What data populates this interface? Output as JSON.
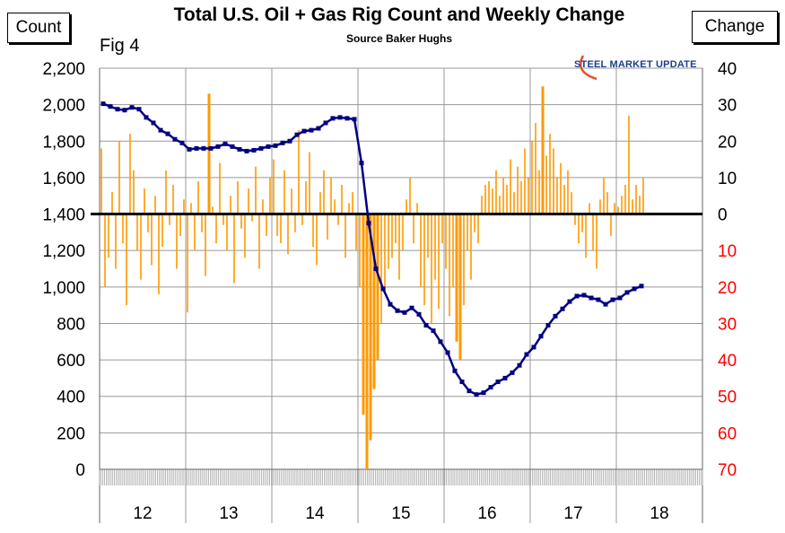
{
  "chart_data": {
    "type": "bar+line",
    "title": "Total U.S. Oil + Gas Rig Count and Weekly Change",
    "subtitle": "Source Baker Hughs",
    "figure_label": "Fig 4",
    "left_axis_label": "Count",
    "right_axis_label": "Change",
    "logo_text": "STEEL MARKET UPDATE",
    "x_tick_labels": [
      "12",
      "13",
      "14",
      "15",
      "16",
      "17",
      "18"
    ],
    "xlim": [
      2012,
      2019
    ],
    "left_ylim": [
      0,
      2200
    ],
    "left_ticks": [
      "0",
      "200",
      "400",
      "600",
      "800",
      "1,000",
      "1,200",
      "1,400",
      "1,600",
      "1,800",
      "2,000",
      "2,200"
    ],
    "right_ylim": [
      -70,
      40
    ],
    "right_ticks": [
      {
        "label": "40",
        "v": 40
      },
      {
        "label": "30",
        "v": 30
      },
      {
        "label": "20",
        "v": 20
      },
      {
        "label": "10",
        "v": 10
      },
      {
        "label": "0",
        "v": 0
      },
      {
        "label": "10",
        "v": -10
      },
      {
        "label": "20",
        "v": -20
      },
      {
        "label": "30",
        "v": -30
      },
      {
        "label": "40",
        "v": -40
      },
      {
        "label": "50",
        "v": -50
      },
      {
        "label": "60",
        "v": -60
      },
      {
        "label": "70",
        "v": -70
      }
    ],
    "colors": {
      "count": "#000080",
      "change": "#ff9900",
      "negative_tick": "#ff0000",
      "zero_line": "#000000",
      "grid": "#999999"
    },
    "series": [
      {
        "name": "Rig count (monthly, from Jan 2012)",
        "axis": "left",
        "type": "line",
        "values": [
          2005,
          1990,
          1975,
          1970,
          1985,
          1975,
          1930,
          1900,
          1860,
          1840,
          1810,
          1790,
          1755,
          1760,
          1760,
          1760,
          1770,
          1785,
          1770,
          1755,
          1745,
          1750,
          1760,
          1770,
          1775,
          1790,
          1800,
          1835,
          1855,
          1860,
          1870,
          1900,
          1925,
          1930,
          1925,
          1920,
          1680,
          1350,
          1100,
          990,
          905,
          870,
          860,
          885,
          850,
          790,
          760,
          700,
          640,
          540,
          480,
          430,
          410,
          420,
          450,
          480,
          500,
          530,
          570,
          630,
          670,
          730,
          790,
          840,
          880,
          920,
          950,
          955,
          940,
          930,
          905,
          930,
          940,
          970,
          990,
          1005
        ]
      },
      {
        "name": "Weekly change (semi-monthly samples, from Jan 2012)",
        "axis": "right",
        "type": "bar",
        "values": [
          18,
          -20,
          -12,
          6,
          -15,
          20,
          -8,
          -25,
          22,
          12,
          -10,
          -18,
          7,
          -5,
          -14,
          5,
          -22,
          -9,
          12,
          -3,
          8,
          -15,
          -6,
          4,
          -27,
          3,
          -10,
          9,
          -5,
          -17,
          33,
          2,
          -8,
          14,
          -3,
          -10,
          5,
          -19,
          9,
          -4,
          -12,
          7,
          -2,
          13,
          -15,
          4,
          -6,
          10,
          15,
          -6,
          -8,
          12,
          -11,
          7,
          -5,
          23,
          -3,
          9,
          17,
          -9,
          -14,
          6,
          12,
          -7,
          10,
          4,
          -3,
          8,
          -12,
          3,
          6,
          -10,
          -20,
          -55,
          -70,
          -62,
          -48,
          -40,
          -30,
          -22,
          -15,
          -12,
          -8,
          -18,
          -10,
          4,
          10,
          -8,
          3,
          -20,
          -25,
          -12,
          -30,
          -18,
          -26,
          -8,
          -15,
          -28,
          -20,
          -35,
          -40,
          -25,
          -10,
          -18,
          -5,
          -8,
          5,
          8,
          9,
          7,
          12,
          5,
          10,
          8,
          15,
          6,
          13,
          9,
          18,
          10,
          20,
          25,
          12,
          35,
          16,
          22,
          18,
          10,
          14,
          8,
          12,
          6,
          -3,
          -8,
          -5,
          -12,
          3,
          -10,
          -15,
          4,
          10,
          6,
          -6,
          3,
          2,
          5,
          8,
          27,
          4,
          8,
          5,
          10
        ]
      }
    ]
  }
}
